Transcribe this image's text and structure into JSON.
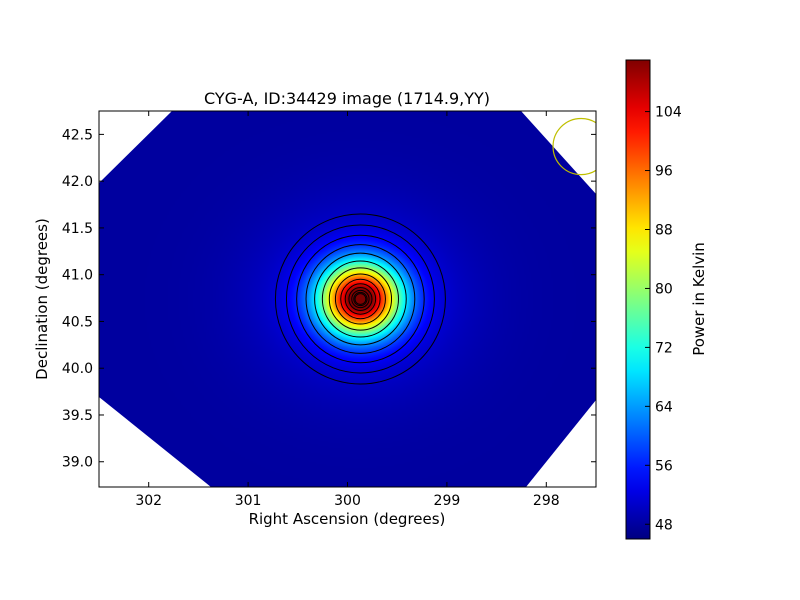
{
  "chart_data": {
    "type": "heatmap",
    "title": "CYG-A, ID:34429 image (1714.9,YY)",
    "xlabel": "Right Ascension (degrees)",
    "ylabel": "Declination (degrees)",
    "colorbar_label": "Power in Kelvin",
    "colormap": "jet",
    "xlim": [
      302.5,
      297.5
    ],
    "ylim": [
      38.73,
      42.75
    ],
    "x_ticks": [
      302,
      301,
      300,
      299,
      298
    ],
    "x_tick_labels": [
      "302",
      "301",
      "300",
      "299",
      "298"
    ],
    "y_ticks": [
      39.0,
      39.5,
      40.0,
      40.5,
      41.0,
      41.5,
      42.0,
      42.5
    ],
    "y_tick_labels": [
      "39.0",
      "39.5",
      "40.0",
      "40.5",
      "41.0",
      "41.5",
      "42.0",
      "42.5"
    ],
    "colorbar_range": [
      46,
      111
    ],
    "colorbar_ticks": [
      48,
      56,
      64,
      72,
      80,
      88,
      96,
      104
    ],
    "colorbar_tick_labels": [
      "48",
      "56",
      "64",
      "72",
      "80",
      "88",
      "96",
      "104"
    ],
    "source": {
      "ra": 299.87,
      "dec": 40.74,
      "peak_kelvin": 110,
      "background_kelvin": 48
    },
    "contour_count": 14,
    "beam_circle": {
      "ra": 297.65,
      "dec": 42.37,
      "radius_deg": 0.3,
      "color": "#bfbf00"
    },
    "grid": false
  }
}
